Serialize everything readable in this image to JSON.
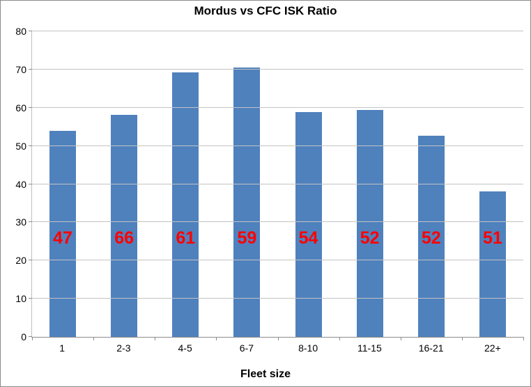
{
  "chart_data": {
    "type": "bar",
    "title": "Mordus vs CFC ISK Ratio",
    "xlabel": "Fleet size",
    "ylabel": "",
    "categories": [
      "1",
      "2-3",
      "4-5",
      "6-7",
      "8-10",
      "11-15",
      "16-21",
      "22+"
    ],
    "series": [
      {
        "name": "ISK Ratio",
        "values": [
          54,
          58.2,
          69.2,
          70.5,
          58.8,
          59.4,
          52.6,
          38
        ]
      }
    ],
    "data_labels": [
      "47",
      "66",
      "61",
      "59",
      "54",
      "52",
      "52",
      "51"
    ],
    "ylim": [
      0,
      80
    ],
    "ytick_interval": 10,
    "grid": true,
    "legend": false,
    "colors": {
      "bar": "#4f81bd",
      "data_label": "#ff0000",
      "gridline": "#c3c3c3",
      "axis": "#8c8c8c",
      "text": "#000000"
    }
  }
}
